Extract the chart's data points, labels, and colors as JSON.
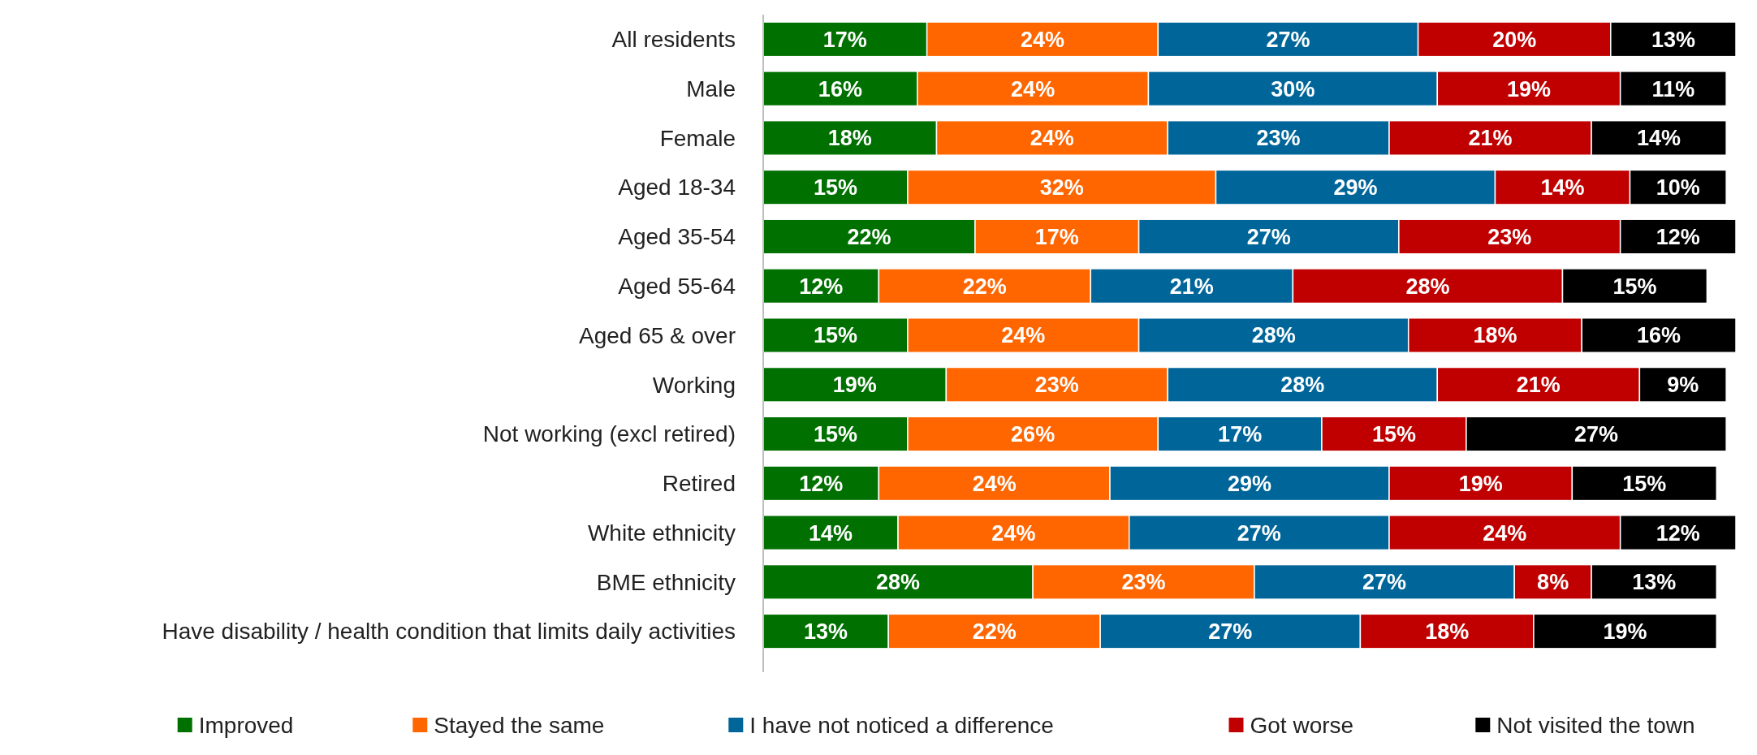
{
  "chart_data": {
    "type": "bar",
    "orientation": "horizontal",
    "stacked": true,
    "legend": "bottom",
    "categories": [
      "All residents",
      "Male",
      "Female",
      "Aged 18-34",
      "Aged 35-54",
      "Aged 55-64",
      "Aged 65 & over",
      "Working",
      "Not working (excl retired)",
      "Retired",
      "White ethnicity",
      "BME ethnicity",
      "Have disability / health condition that limits daily activities"
    ],
    "series": [
      {
        "name": "Improved",
        "color": "#007000",
        "values": [
          17,
          16,
          18,
          15,
          22,
          12,
          15,
          19,
          15,
          12,
          14,
          28,
          13
        ],
        "value_labels": [
          "17%",
          "16%",
          "18%",
          "15%",
          "22%",
          "12%",
          "15%",
          "19%",
          "15%",
          "12%",
          "14%",
          "28%",
          "13%"
        ]
      },
      {
        "name": "Stayed the same",
        "color": "#ff6600",
        "values": [
          24,
          24,
          24,
          32,
          17,
          22,
          24,
          23,
          26,
          24,
          24,
          23,
          22
        ],
        "value_labels": [
          "24%",
          "24%",
          "24%",
          "32%",
          "17%",
          "22%",
          "24%",
          "23%",
          "26%",
          "24%",
          "24%",
          "23%",
          "22%"
        ]
      },
      {
        "name": "I have not noticed a difference",
        "color": "#006699",
        "values": [
          27,
          30,
          23,
          29,
          27,
          21,
          28,
          28,
          17,
          29,
          27,
          27,
          27
        ],
        "value_labels": [
          "27%",
          "30%",
          "23%",
          "29%",
          "27%",
          "21%",
          "28%",
          "28%",
          "17%",
          "29%",
          "27%",
          "27%",
          "27%"
        ]
      },
      {
        "name": "Got worse",
        "color": "#c00000",
        "values": [
          20,
          19,
          21,
          14,
          23,
          28,
          18,
          21,
          15,
          19,
          24,
          8,
          18
        ],
        "value_labels": [
          "20%",
          "19%",
          "21%",
          "14%",
          "23%",
          "28%",
          "18%",
          "21%",
          "15%",
          "19%",
          "24%",
          "8%",
          "18%"
        ]
      },
      {
        "name": "Not visited the town",
        "color": "#000000",
        "values": [
          13,
          11,
          14,
          10,
          12,
          15,
          16,
          9,
          27,
          15,
          12,
          13,
          19
        ],
        "value_labels": [
          "13%",
          "11%",
          "14%",
          "10%",
          "12%",
          "15%",
          "16%",
          "9%",
          "27%",
          "15%",
          "12%",
          "13%",
          "19%"
        ]
      }
    ]
  }
}
